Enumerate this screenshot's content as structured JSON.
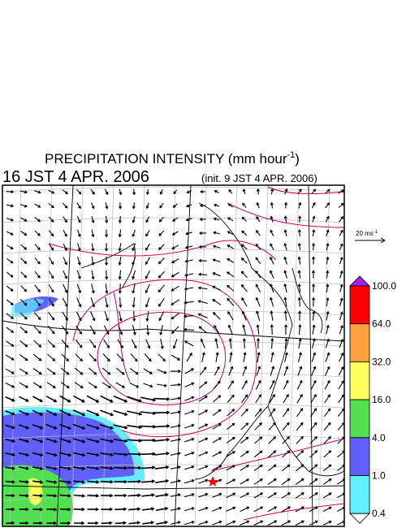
{
  "header": {
    "title": "PRECIPITATION INTENSITY (mm hour",
    "title_exponent": "-1",
    "title_close": ")",
    "valid_time": "16 JST 4 APR. 2006",
    "init_time": "(init. 9 JST 4 APR. 2006)"
  },
  "reference_vector": {
    "label": "20 ms",
    "exponent": "-1"
  },
  "colorbar": {
    "labels": [
      "100.0",
      "64.0",
      "32.0",
      "16.0",
      "4.0",
      "1.0",
      "0.4"
    ],
    "colors": [
      "#a020f0",
      "#ff0000",
      "#ffa040",
      "#ffff60",
      "#50e050",
      "#6060ff",
      "#60f0ff",
      "#ffffff"
    ]
  }
}
